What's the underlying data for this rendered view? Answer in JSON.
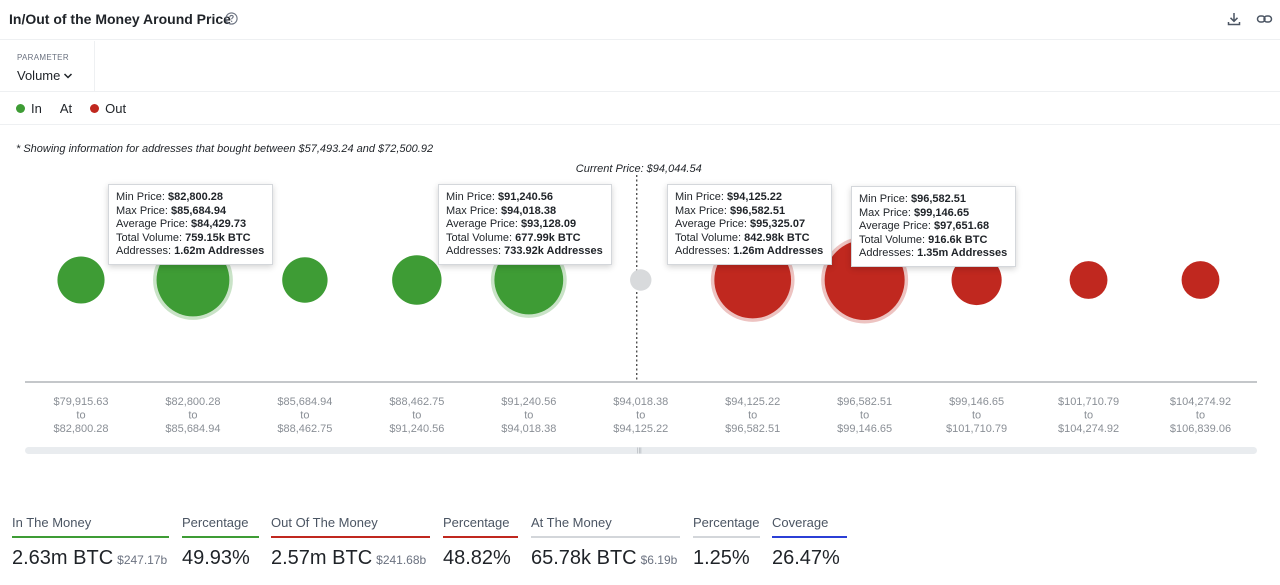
{
  "header": {
    "title": "In/Out of the Money Around Price",
    "help_icon": "question-circle-icon",
    "download_icon": "download-icon",
    "link_icon": "link-icon"
  },
  "parameter": {
    "label": "PARAMETER",
    "value": "Volume"
  },
  "legend": [
    {
      "label": "In",
      "color": "#3e9c35"
    },
    {
      "label": "At",
      "color": ""
    },
    {
      "label": "Out",
      "color": "#c0281f"
    }
  ],
  "note": "* Showing information for addresses that bought between $57,493.24 and $72,500.92",
  "chart_data": {
    "type": "scatter",
    "current_price_label": "Current Price: $94,044.54",
    "colors": {
      "in": "#3e9c35",
      "out": "#c0281f",
      "at": "#d8dadc"
    },
    "buckets": [
      {
        "from": "$79,915.63",
        "to": "$82,800.28",
        "status": "in",
        "volume_btc": 318
      },
      {
        "from": "$82,800.28",
        "to": "$85,684.94",
        "status": "in",
        "volume_btc": 759.15
      },
      {
        "from": "$85,684.94",
        "to": "$88,462.75",
        "status": "in",
        "volume_btc": 295
      },
      {
        "from": "$88,462.75",
        "to": "$91,240.56",
        "status": "in",
        "volume_btc": 350
      },
      {
        "from": "$91,240.56",
        "to": "$94,018.38",
        "status": "in",
        "volume_btc": 677.99
      },
      {
        "from": "$94,018.38",
        "to": "$94,125.22",
        "status": "at",
        "volume_btc": 65.78
      },
      {
        "from": "$94,125.22",
        "to": "$96,582.51",
        "status": "out",
        "volume_btc": 842.98
      },
      {
        "from": "$96,582.51",
        "to": "$99,146.65",
        "status": "out",
        "volume_btc": 916.6
      },
      {
        "from": "$99,146.65",
        "to": "$101,710.79",
        "status": "out",
        "volume_btc": 360
      },
      {
        "from": "$101,710.79",
        "to": "$104,274.92",
        "status": "out",
        "volume_btc": 205
      },
      {
        "from": "$104,274.92",
        "to": "$106,839.06",
        "status": "out",
        "volume_btc": 205
      }
    ],
    "to_word": "to",
    "highlighted": [
      1,
      4,
      6,
      7
    ],
    "tooltips": [
      {
        "bucket": 1,
        "min_label": "Min Price:",
        "min": "$82,800.28",
        "max_label": "Max Price:",
        "max": "$85,684.94",
        "avg_label": "Average Price:",
        "avg": "$84,429.73",
        "vol_label": "Total Volume:",
        "vol": "759.15k BTC",
        "addr_label": "Addresses:",
        "addr": "1.62m Addresses"
      },
      {
        "bucket": 4,
        "min_label": "Min Price:",
        "min": "$91,240.56",
        "max_label": "Max Price:",
        "max": "$94,018.38",
        "avg_label": "Average Price:",
        "avg": "$93,128.09",
        "vol_label": "Total Volume:",
        "vol": "677.99k BTC",
        "addr_label": "Addresses:",
        "addr": "733.92k Addresses"
      },
      {
        "bucket": 6,
        "min_label": "Min Price:",
        "min": "$94,125.22",
        "max_label": "Max Price:",
        "max": "$96,582.51",
        "avg_label": "Average Price:",
        "avg": "$95,325.07",
        "vol_label": "Total Volume:",
        "vol": "842.98k BTC",
        "addr_label": "Addresses:",
        "addr": "1.26m Addresses"
      },
      {
        "bucket": 7,
        "min_label": "Min Price:",
        "min": "$96,582.51",
        "max_label": "Max Price:",
        "max": "$99,146.65",
        "avg_label": "Average Price:",
        "avg": "$97,651.68",
        "vol_label": "Total Volume:",
        "vol": "916.6k BTC",
        "addr_label": "Addresses:",
        "addr": "1.35m Addresses"
      }
    ]
  },
  "stats": [
    {
      "label": "In The Money",
      "value": "2.63m BTC",
      "sub": "$247.17b",
      "color": "#3e9c35"
    },
    {
      "label": "Percentage",
      "value": "49.93%",
      "sub": "",
      "color": "#3e9c35"
    },
    {
      "label": "Out Of The Money",
      "value": "2.57m BTC",
      "sub": "$241.68b",
      "color": "#c0281f"
    },
    {
      "label": "Percentage",
      "value": "48.82%",
      "sub": "",
      "color": "#c0281f"
    },
    {
      "label": "At The Money",
      "value": "65.78k BTC",
      "sub": "$6.19b",
      "color": "#d3d6da"
    },
    {
      "label": "Percentage",
      "value": "1.25%",
      "sub": "",
      "color": "#d3d6da"
    },
    {
      "label": "Coverage",
      "value": "26.47%",
      "sub": "",
      "color": "#2b3fd6"
    }
  ]
}
